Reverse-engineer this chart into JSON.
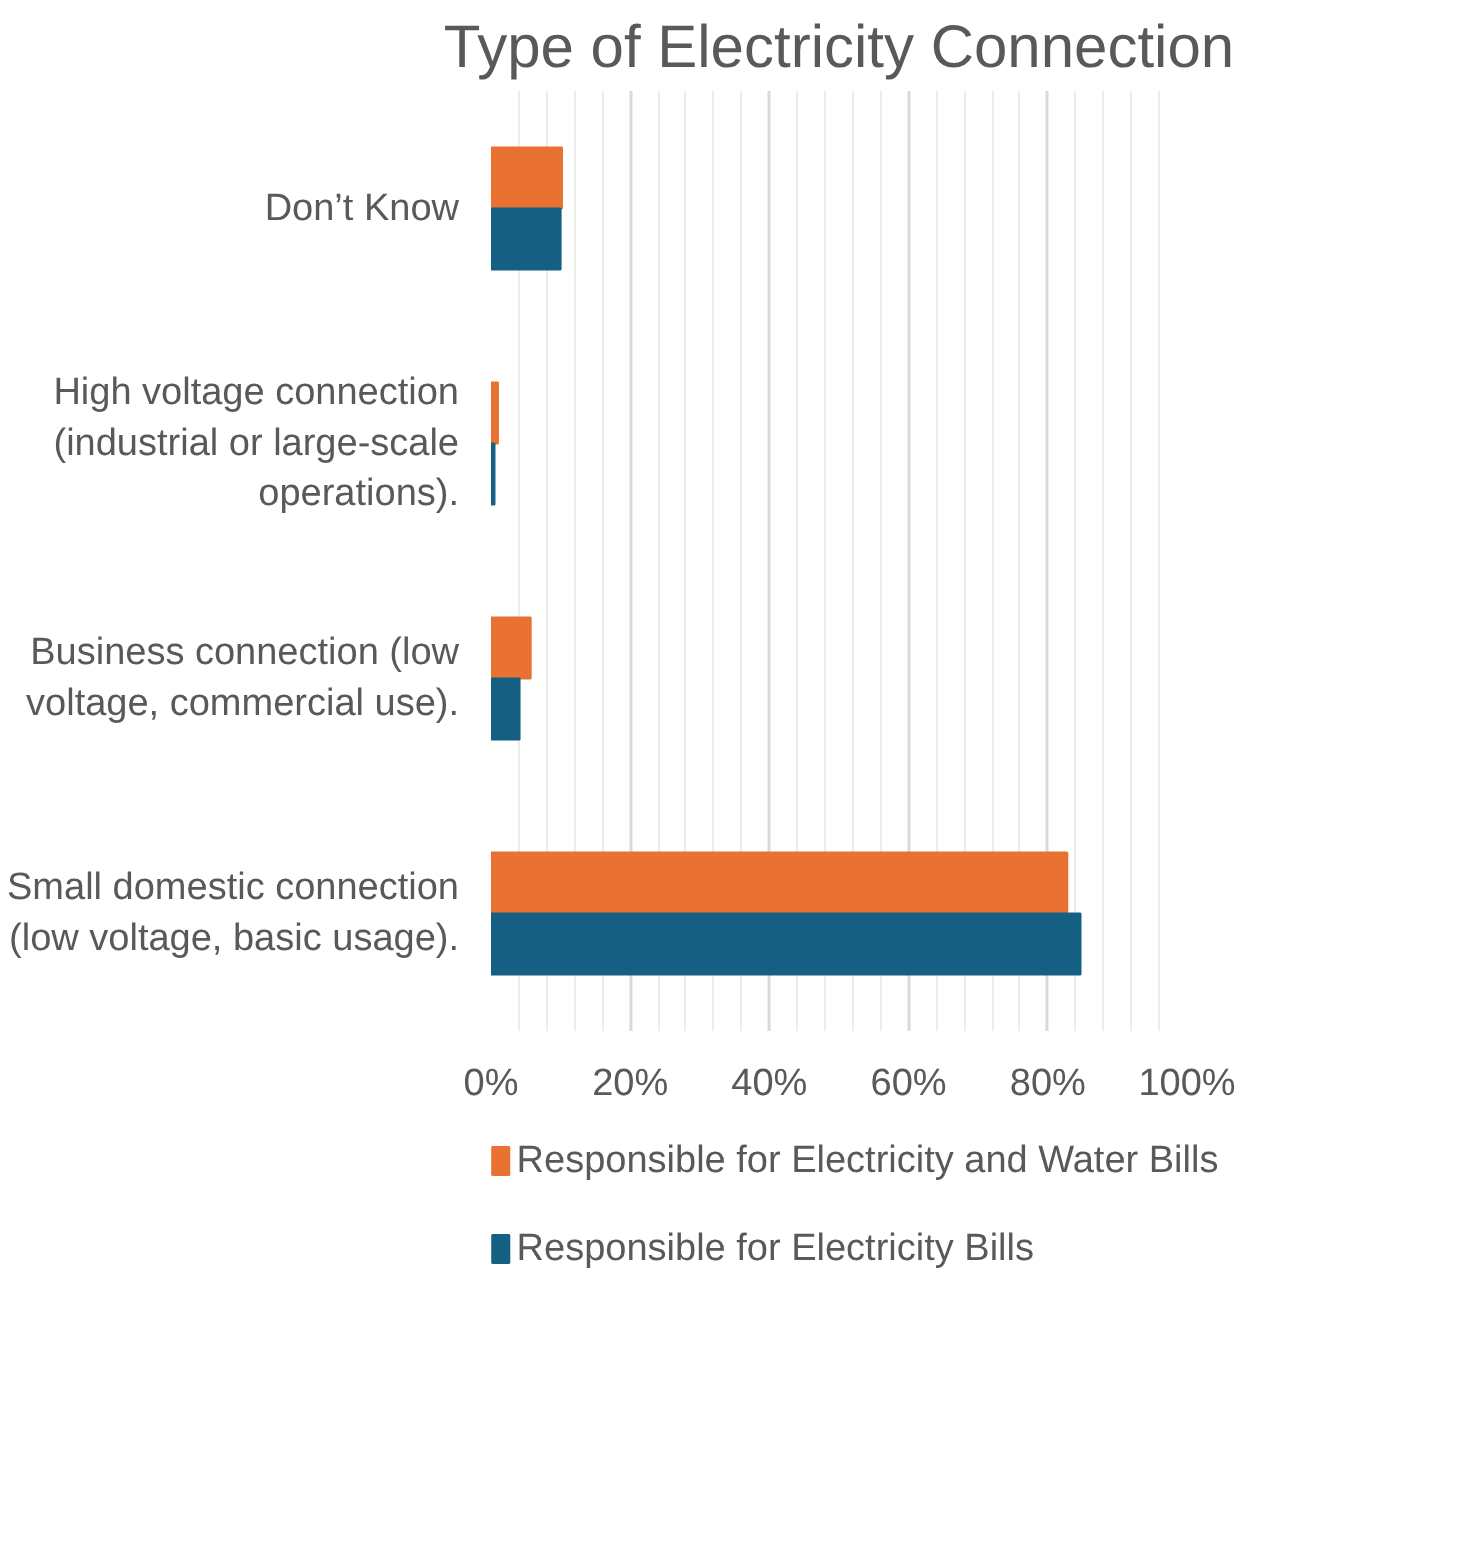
{
  "chart_data": {
    "type": "bar",
    "orientation": "horizontal",
    "title": "Type of Electricity Connection",
    "categories": [
      "Don’t Know",
      "High voltage connection (industrial or large-scale operations).",
      "Business connection (low voltage, commercial use).",
      "Small domestic connection (low voltage, basic usage)."
    ],
    "series": [
      {
        "name": "Responsible for Electricity and Water Bills",
        "color": "#e97132",
        "values": [
          10.2,
          1.0,
          5.7,
          82.8
        ]
      },
      {
        "name": "Responsible for Electricity Bills",
        "color": "#156082",
        "values": [
          10.0,
          0.5,
          4.1,
          84.7
        ]
      }
    ],
    "xlim": [
      0,
      100
    ],
    "xticks": [
      {
        "value": 0,
        "label": "0%"
      },
      {
        "value": 20,
        "label": "20%"
      },
      {
        "value": 40,
        "label": "40%"
      },
      {
        "value": 60,
        "label": "60%"
      },
      {
        "value": 80,
        "label": "80%"
      },
      {
        "value": 100,
        "label": "100%"
      }
    ],
    "grid": "x",
    "legend": "bottom"
  }
}
